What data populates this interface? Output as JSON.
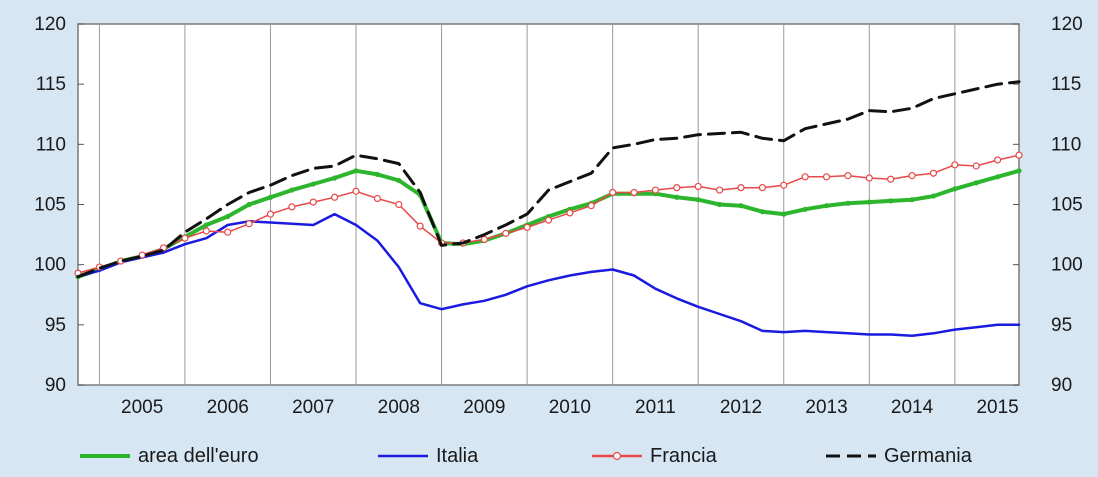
{
  "chart_data": {
    "type": "line",
    "title": "",
    "xlabel": "",
    "ylabel": "",
    "ylim": [
      90,
      120
    ],
    "y_ticks": [
      90,
      95,
      100,
      105,
      110,
      115,
      120
    ],
    "x_range": [
      2004.75,
      2015.75
    ],
    "x_tick_labels": [
      "2005",
      "2006",
      "2007",
      "2008",
      "2009",
      "2010",
      "2011",
      "2012",
      "2013",
      "2014",
      "2015"
    ],
    "grid": "vertical lines at year boundaries",
    "legend_position": "bottom",
    "secondary_y_axis_mirrored": true,
    "series": [
      {
        "name": "area dell'euro",
        "color": "#2db52d",
        "style": "solid-thick-markers",
        "x": [
          2004.75,
          2005.0,
          2005.25,
          2005.5,
          2005.75,
          2006.0,
          2006.25,
          2006.5,
          2006.75,
          2007.0,
          2007.25,
          2007.5,
          2007.75,
          2008.0,
          2008.25,
          2008.5,
          2008.75,
          2009.0,
          2009.25,
          2009.5,
          2009.75,
          2010.0,
          2010.25,
          2010.5,
          2010.75,
          2011.0,
          2011.25,
          2011.5,
          2011.75,
          2012.0,
          2012.25,
          2012.5,
          2012.75,
          2013.0,
          2013.25,
          2013.5,
          2013.75,
          2014.0,
          2014.25,
          2014.5,
          2014.75,
          2015.0,
          2015.25,
          2015.5,
          2015.75
        ],
        "values": [
          99.0,
          99.6,
          100.3,
          100.7,
          101.3,
          102.3,
          103.3,
          104.0,
          105.0,
          105.6,
          106.2,
          106.7,
          107.2,
          107.8,
          107.5,
          107.0,
          105.8,
          101.8,
          101.7,
          102.0,
          102.6,
          103.3,
          104.0,
          104.6,
          105.1,
          105.9,
          105.9,
          105.9,
          105.6,
          105.4,
          105.0,
          104.9,
          104.4,
          104.2,
          104.6,
          104.9,
          105.1,
          105.2,
          105.3,
          105.4,
          105.7,
          106.3,
          106.8,
          107.3,
          107.8
        ]
      },
      {
        "name": "Italia",
        "color": "#1a1ae0",
        "style": "solid",
        "x": [
          2004.75,
          2005.0,
          2005.25,
          2005.5,
          2005.75,
          2006.0,
          2006.25,
          2006.5,
          2006.75,
          2007.0,
          2007.25,
          2007.5,
          2007.75,
          2008.0,
          2008.25,
          2008.5,
          2008.75,
          2009.0,
          2009.25,
          2009.5,
          2009.75,
          2010.0,
          2010.25,
          2010.5,
          2010.75,
          2011.0,
          2011.25,
          2011.5,
          2011.75,
          2012.0,
          2012.25,
          2012.5,
          2012.75,
          2013.0,
          2013.25,
          2013.5,
          2013.75,
          2014.0,
          2014.25,
          2014.5,
          2014.75,
          2015.0,
          2015.25,
          2015.5,
          2015.75
        ],
        "values": [
          99.0,
          99.5,
          100.2,
          100.6,
          101.0,
          101.7,
          102.2,
          103.3,
          103.6,
          103.5,
          103.4,
          103.3,
          104.2,
          103.3,
          102.0,
          99.8,
          96.8,
          96.3,
          96.7,
          97.0,
          97.5,
          98.2,
          98.7,
          99.1,
          99.4,
          99.6,
          99.1,
          98.0,
          97.2,
          96.5,
          95.9,
          95.3,
          94.5,
          94.4,
          94.5,
          94.4,
          94.3,
          94.2,
          94.2,
          94.1,
          94.3,
          94.6,
          94.8,
          95.0,
          95.0
        ]
      },
      {
        "name": "Francia",
        "color": "#e84848",
        "style": "thin-open-markers",
        "x": [
          2004.75,
          2005.0,
          2005.25,
          2005.5,
          2005.75,
          2006.0,
          2006.25,
          2006.5,
          2006.75,
          2007.0,
          2007.25,
          2007.5,
          2007.75,
          2008.0,
          2008.25,
          2008.5,
          2008.75,
          2009.0,
          2009.25,
          2009.5,
          2009.75,
          2010.0,
          2010.25,
          2010.5,
          2010.75,
          2011.0,
          2011.25,
          2011.5,
          2011.75,
          2012.0,
          2012.25,
          2012.5,
          2012.75,
          2013.0,
          2013.25,
          2013.5,
          2013.75,
          2014.0,
          2014.25,
          2014.5,
          2014.75,
          2015.0,
          2015.25,
          2015.5,
          2015.75
        ],
        "values": [
          99.3,
          99.8,
          100.3,
          100.8,
          101.4,
          102.2,
          102.8,
          102.7,
          103.4,
          104.2,
          104.8,
          105.2,
          105.6,
          106.1,
          105.5,
          105.0,
          103.2,
          101.8,
          101.8,
          102.1,
          102.6,
          103.1,
          103.7,
          104.3,
          104.9,
          106.0,
          106.0,
          106.2,
          106.4,
          106.5,
          106.2,
          106.4,
          106.4,
          106.6,
          107.3,
          107.3,
          107.4,
          107.2,
          107.1,
          107.4,
          107.6,
          108.3,
          108.2,
          108.7,
          109.1
        ]
      },
      {
        "name": "Germania",
        "color": "#111111",
        "style": "dashed",
        "x": [
          2004.75,
          2005.0,
          2005.25,
          2005.5,
          2005.75,
          2006.0,
          2006.25,
          2006.5,
          2006.75,
          2007.0,
          2007.25,
          2007.5,
          2007.75,
          2008.0,
          2008.25,
          2008.5,
          2008.75,
          2009.0,
          2009.25,
          2009.5,
          2009.75,
          2010.0,
          2010.25,
          2010.5,
          2010.75,
          2011.0,
          2011.25,
          2011.5,
          2011.75,
          2012.0,
          2012.25,
          2012.5,
          2012.75,
          2013.0,
          2013.25,
          2013.5,
          2013.75,
          2014.0,
          2014.25,
          2014.5,
          2014.75,
          2015.0,
          2015.25,
          2015.5,
          2015.75
        ],
        "values": [
          99.0,
          99.7,
          100.3,
          100.7,
          101.2,
          102.7,
          103.8,
          105.0,
          106.0,
          106.6,
          107.4,
          108.0,
          108.2,
          109.1,
          108.8,
          108.4,
          106.0,
          101.6,
          101.8,
          102.5,
          103.3,
          104.2,
          106.2,
          106.9,
          107.6,
          109.7,
          110.0,
          110.4,
          110.5,
          110.8,
          110.9,
          111.0,
          110.5,
          110.3,
          111.3,
          111.7,
          112.1,
          112.8,
          112.7,
          113.0,
          113.8,
          114.2,
          114.6,
          115.0,
          115.2
        ]
      }
    ]
  }
}
